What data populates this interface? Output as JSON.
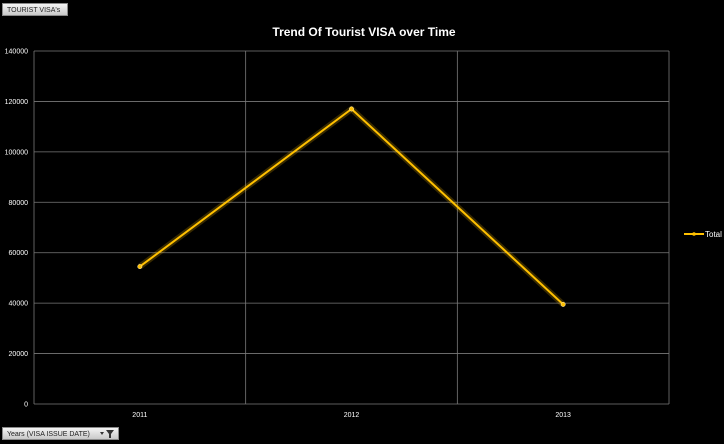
{
  "filters": {
    "top_field": "TOURIST VISA's",
    "bottom_field": "Years (VISA ISSUE DATE)"
  },
  "colors": {
    "background": "#000000",
    "grid": "#7a7a7a",
    "series": "#ffc000"
  },
  "chart_data": {
    "type": "line",
    "title": "Trend Of Tourist VISA over Time",
    "xlabel": "",
    "ylabel": "",
    "categories": [
      "2011",
      "2012",
      "2013"
    ],
    "series": [
      {
        "name": "Total",
        "values": [
          54500,
          117000,
          39500
        ]
      }
    ],
    "ylim": [
      0,
      140000
    ],
    "yticks": [
      0,
      20000,
      40000,
      60000,
      80000,
      100000,
      120000,
      140000
    ],
    "grid": true,
    "legend": "right",
    "marker": "circle"
  }
}
